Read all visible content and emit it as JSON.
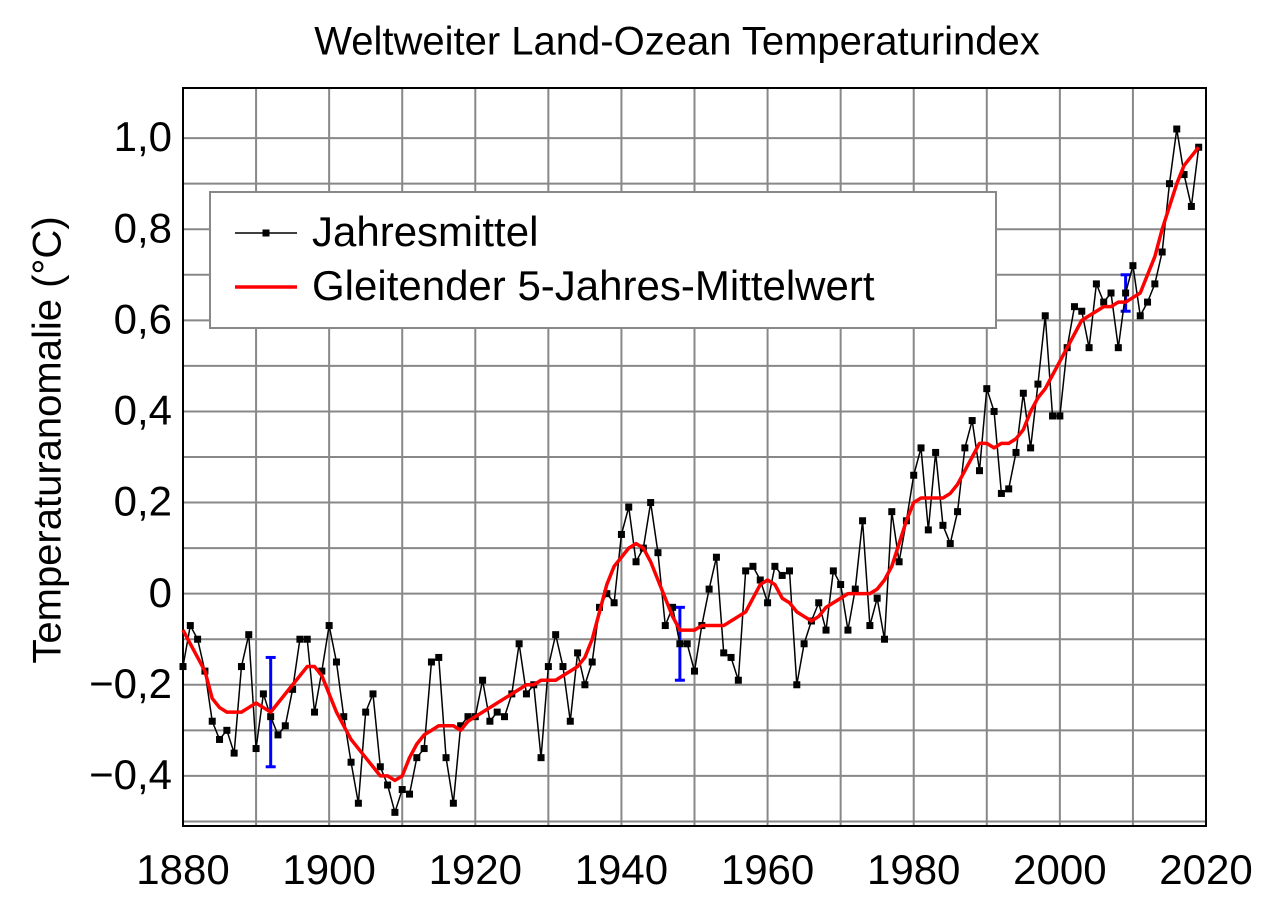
{
  "chart_data": {
    "type": "line",
    "title": "Weltweiter Land-Ozean Temperaturindex",
    "ylabel": "Temperaturanomalie (°C)",
    "x": [
      1880,
      1881,
      1882,
      1883,
      1884,
      1885,
      1886,
      1887,
      1888,
      1889,
      1890,
      1891,
      1892,
      1893,
      1894,
      1895,
      1896,
      1897,
      1898,
      1899,
      1900,
      1901,
      1902,
      1903,
      1904,
      1905,
      1906,
      1907,
      1908,
      1909,
      1910,
      1911,
      1912,
      1913,
      1914,
      1915,
      1916,
      1917,
      1918,
      1919,
      1920,
      1921,
      1922,
      1923,
      1924,
      1925,
      1926,
      1927,
      1928,
      1929,
      1930,
      1931,
      1932,
      1933,
      1934,
      1935,
      1936,
      1937,
      1938,
      1939,
      1940,
      1941,
      1942,
      1943,
      1944,
      1945,
      1946,
      1947,
      1948,
      1949,
      1950,
      1951,
      1952,
      1953,
      1954,
      1955,
      1956,
      1957,
      1958,
      1959,
      1960,
      1961,
      1962,
      1963,
      1964,
      1965,
      1966,
      1967,
      1968,
      1969,
      1970,
      1971,
      1972,
      1973,
      1974,
      1975,
      1976,
      1977,
      1978,
      1979,
      1980,
      1981,
      1982,
      1983,
      1984,
      1985,
      1986,
      1987,
      1988,
      1989,
      1990,
      1991,
      1992,
      1993,
      1994,
      1995,
      1996,
      1997,
      1998,
      1999,
      2000,
      2001,
      2002,
      2003,
      2004,
      2005,
      2006,
      2007,
      2008,
      2009,
      2010,
      2011,
      2012,
      2013,
      2014,
      2015,
      2016,
      2017,
      2018,
      2019
    ],
    "series": [
      {
        "name": "Jahresmittel",
        "color": "#000000",
        "markers": true,
        "values": [
          -0.16,
          -0.07,
          -0.1,
          -0.17,
          -0.28,
          -0.32,
          -0.3,
          -0.35,
          -0.16,
          -0.09,
          -0.34,
          -0.22,
          -0.27,
          -0.31,
          -0.29,
          -0.21,
          -0.1,
          -0.1,
          -0.26,
          -0.17,
          -0.07,
          -0.15,
          -0.27,
          -0.37,
          -0.46,
          -0.26,
          -0.22,
          -0.38,
          -0.42,
          -0.48,
          -0.43,
          -0.44,
          -0.36,
          -0.34,
          -0.15,
          -0.14,
          -0.36,
          -0.46,
          -0.29,
          -0.27,
          -0.27,
          -0.19,
          -0.28,
          -0.26,
          -0.27,
          -0.22,
          -0.11,
          -0.22,
          -0.2,
          -0.36,
          -0.16,
          -0.09,
          -0.16,
          -0.28,
          -0.13,
          -0.2,
          -0.15,
          -0.03,
          0.0,
          -0.02,
          0.13,
          0.19,
          0.07,
          0.1,
          0.2,
          0.09,
          -0.07,
          -0.03,
          -0.11,
          -0.11,
          -0.17,
          -0.07,
          0.01,
          0.08,
          -0.13,
          -0.14,
          -0.19,
          0.05,
          0.06,
          0.03,
          -0.02,
          0.06,
          0.04,
          0.05,
          -0.2,
          -0.11,
          -0.06,
          -0.02,
          -0.08,
          0.05,
          0.02,
          -0.08,
          0.01,
          0.16,
          -0.07,
          -0.01,
          -0.1,
          0.18,
          0.07,
          0.16,
          0.26,
          0.32,
          0.14,
          0.31,
          0.15,
          0.11,
          0.18,
          0.32,
          0.38,
          0.27,
          0.45,
          0.4,
          0.22,
          0.23,
          0.31,
          0.44,
          0.32,
          0.46,
          0.61,
          0.39,
          0.39,
          0.54,
          0.63,
          0.62,
          0.54,
          0.68,
          0.64,
          0.66,
          0.54,
          0.66,
          0.72,
          0.61,
          0.64,
          0.68,
          0.75,
          0.9,
          1.02,
          0.92,
          0.85,
          0.98
        ]
      },
      {
        "name": "Gleitender 5-Jahres-Mittelwert",
        "color": "#ff0000",
        "markers": false,
        "values": [
          -0.08,
          -0.11,
          -0.14,
          -0.17,
          -0.23,
          -0.25,
          -0.26,
          -0.26,
          -0.26,
          -0.25,
          -0.24,
          -0.25,
          -0.26,
          -0.24,
          -0.22,
          -0.2,
          -0.18,
          -0.16,
          -0.16,
          -0.18,
          -0.22,
          -0.26,
          -0.29,
          -0.32,
          -0.34,
          -0.36,
          -0.38,
          -0.4,
          -0.4,
          -0.41,
          -0.4,
          -0.36,
          -0.33,
          -0.31,
          -0.3,
          -0.29,
          -0.29,
          -0.29,
          -0.3,
          -0.28,
          -0.27,
          -0.26,
          -0.25,
          -0.24,
          -0.23,
          -0.22,
          -0.21,
          -0.2,
          -0.2,
          -0.19,
          -0.19,
          -0.19,
          -0.18,
          -0.17,
          -0.16,
          -0.14,
          -0.1,
          -0.04,
          0.02,
          0.06,
          0.08,
          0.1,
          0.11,
          0.1,
          0.07,
          0.03,
          -0.01,
          -0.05,
          -0.08,
          -0.08,
          -0.08,
          -0.07,
          -0.07,
          -0.07,
          -0.07,
          -0.06,
          -0.05,
          -0.04,
          -0.01,
          0.02,
          0.03,
          0.02,
          -0.01,
          -0.02,
          -0.04,
          -0.05,
          -0.06,
          -0.05,
          -0.03,
          -0.02,
          -0.01,
          0.0,
          0.0,
          0.0,
          0.0,
          0.01,
          0.03,
          0.06,
          0.11,
          0.16,
          0.2,
          0.21,
          0.21,
          0.21,
          0.21,
          0.22,
          0.24,
          0.27,
          0.3,
          0.33,
          0.33,
          0.32,
          0.33,
          0.33,
          0.34,
          0.36,
          0.4,
          0.43,
          0.45,
          0.48,
          0.51,
          0.54,
          0.57,
          0.6,
          0.61,
          0.62,
          0.63,
          0.63,
          0.64,
          0.64,
          0.65,
          0.66,
          0.7,
          0.74,
          0.8,
          0.85,
          0.9,
          0.94,
          0.96,
          0.98
        ]
      }
    ],
    "error_bars": {
      "color": "#0000ff",
      "x": [
        1892,
        1948,
        2009
      ],
      "values": [
        -0.26,
        -0.11,
        0.66
      ],
      "errors": [
        0.12,
        0.08,
        0.04
      ]
    },
    "xlim": [
      1880,
      2020
    ],
    "xticks": [
      1880,
      1900,
      1920,
      1940,
      1960,
      1980,
      2000,
      2020
    ],
    "xminorticks": [
      1890,
      1910,
      1930,
      1950,
      1970,
      1990,
      2010
    ],
    "ylim": [
      -0.51,
      1.11
    ],
    "yticks": [
      {
        "value": -0.4,
        "label": "−0,4"
      },
      {
        "value": -0.2,
        "label": "−0,2"
      },
      0,
      {
        "value": 0.2,
        "label": "0,2"
      },
      {
        "value": 0.4,
        "label": "0,4"
      },
      {
        "value": 0.6,
        "label": "0,6"
      },
      {
        "value": 0.8,
        "label": "0,8"
      },
      {
        "value": 1,
        "label": "1,0"
      }
    ],
    "yminorticks": [
      -0.5,
      -0.3,
      -0.1,
      0.1,
      0.3,
      0.5,
      0.7,
      0.9
    ],
    "grid": true,
    "legend": "upper left"
  }
}
